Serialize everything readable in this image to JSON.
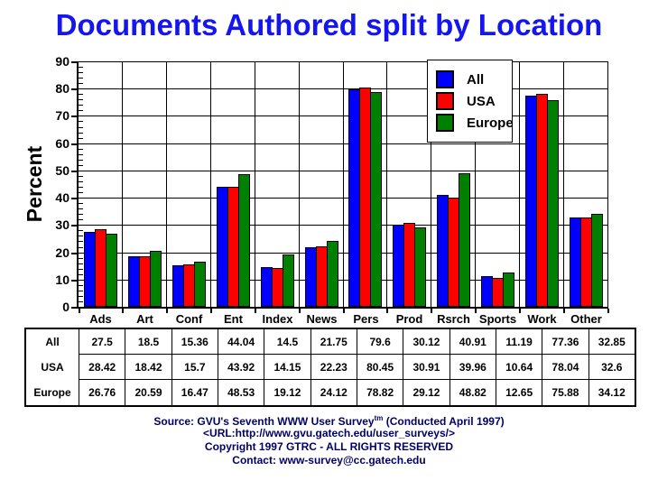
{
  "title": {
    "text": "Documents Authored split by Location",
    "color": "#1515EF"
  },
  "chart_data": {
    "type": "bar",
    "title": "Documents Authored split by Location",
    "xlabel": "",
    "ylabel": "Percent",
    "ylim": [
      0,
      90
    ],
    "yticks": {
      "step": 10,
      "minor_step": 2
    },
    "grid": true,
    "legend": {
      "position": "top-center-overlay",
      "entries": [
        "All",
        "USA",
        "Europe"
      ]
    },
    "categories": [
      "Ads",
      "Art",
      "Conf",
      "Ent",
      "Index",
      "News",
      "Pers",
      "Prod",
      "Rsrch",
      "Sports",
      "Work",
      "Other"
    ],
    "series": [
      {
        "name": "All",
        "color": "#0000FF",
        "values": [
          27.5,
          18.5,
          15.36,
          44.04,
          14.5,
          21.75,
          79.6,
          30.12,
          40.91,
          11.19,
          77.36,
          32.85
        ]
      },
      {
        "name": "USA",
        "color": "#FF0000",
        "values": [
          28.42,
          18.42,
          15.7,
          43.92,
          14.15,
          22.23,
          80.45,
          30.91,
          39.96,
          10.64,
          78.04,
          32.6
        ]
      },
      {
        "name": "Europe",
        "color": "#008000",
        "values": [
          26.76,
          20.59,
          16.47,
          48.53,
          19.12,
          24.12,
          78.82,
          29.12,
          48.82,
          12.65,
          75.88,
          34.12
        ]
      }
    ]
  },
  "footer": {
    "color": "#000066",
    "source_pre": "Source: GVU's Seventh WWW User Survey",
    "source_sup": "tm",
    "source_post": " (Conducted April 1997)",
    "url": "<URL:http://www.gvu.gatech.edu/user_surveys/>",
    "copyright": "Copyright 1997 GTRC - ALL RIGHTS RESERVED",
    "contact": "Contact: www-survey@cc.gatech.edu"
  }
}
